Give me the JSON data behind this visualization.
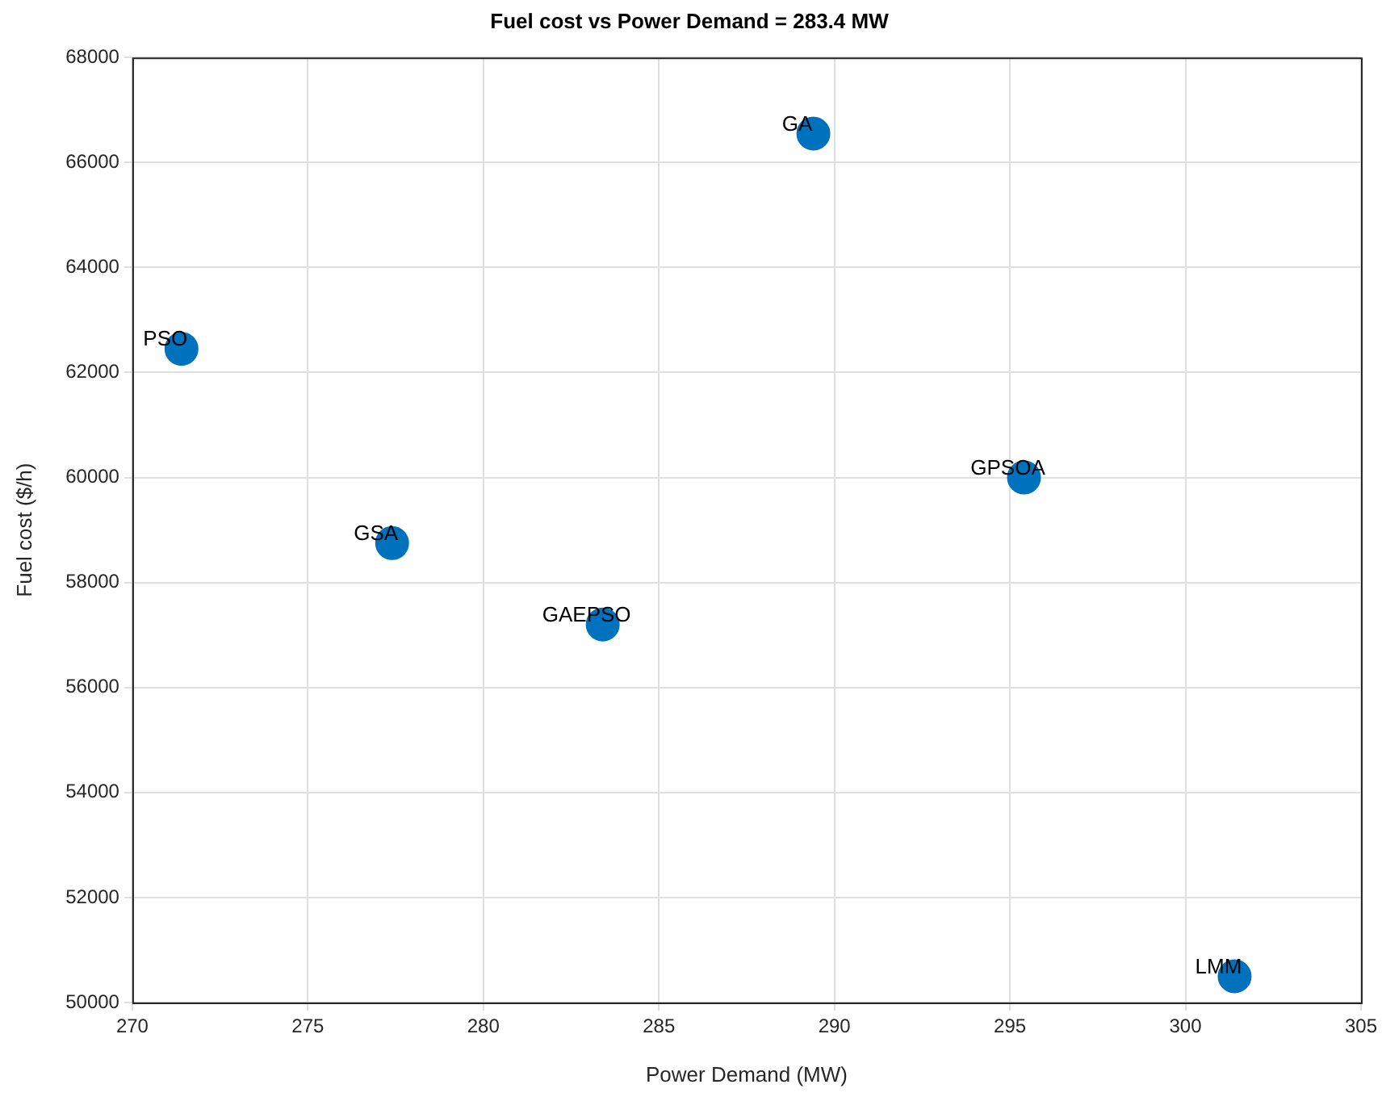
{
  "chart_data": {
    "type": "scatter",
    "title": "Fuel cost vs Power Demand = 283.4 MW",
    "xlabel": "Power Demand (MW)",
    "ylabel": "Fuel cost ($/h)",
    "x": [
      271.4,
      277.4,
      283.4,
      289.4,
      295.4,
      301.4
    ],
    "series": [
      {
        "color": "#0072bd",
        "values": [
          62450,
          58750,
          57200,
          66550,
          60000,
          50500
        ]
      }
    ],
    "xlim": [
      270,
      305
    ],
    "xticks": [
      270,
      275,
      280,
      285,
      290,
      295,
      300,
      305
    ],
    "ylim": [
      50000,
      68000
    ],
    "yticks": [
      50000,
      52000,
      54000,
      56000,
      58000,
      60000,
      62000,
      64000,
      66000,
      68000
    ],
    "grid": true,
    "legend": false,
    "marker": "circle",
    "annotations": [
      {
        "text": "PSO",
        "x": 271.4,
        "y": 62450
      },
      {
        "text": "GSA",
        "x": 277.4,
        "y": 58750
      },
      {
        "text": "GAEPSO",
        "x": 283.4,
        "y": 57200
      },
      {
        "text": "GA",
        "x": 289.4,
        "y": 66550
      },
      {
        "text": "GPSOA",
        "x": 295.4,
        "y": 60000
      },
      {
        "text": "LMM",
        "x": 301.4,
        "y": 50500
      }
    ]
  }
}
